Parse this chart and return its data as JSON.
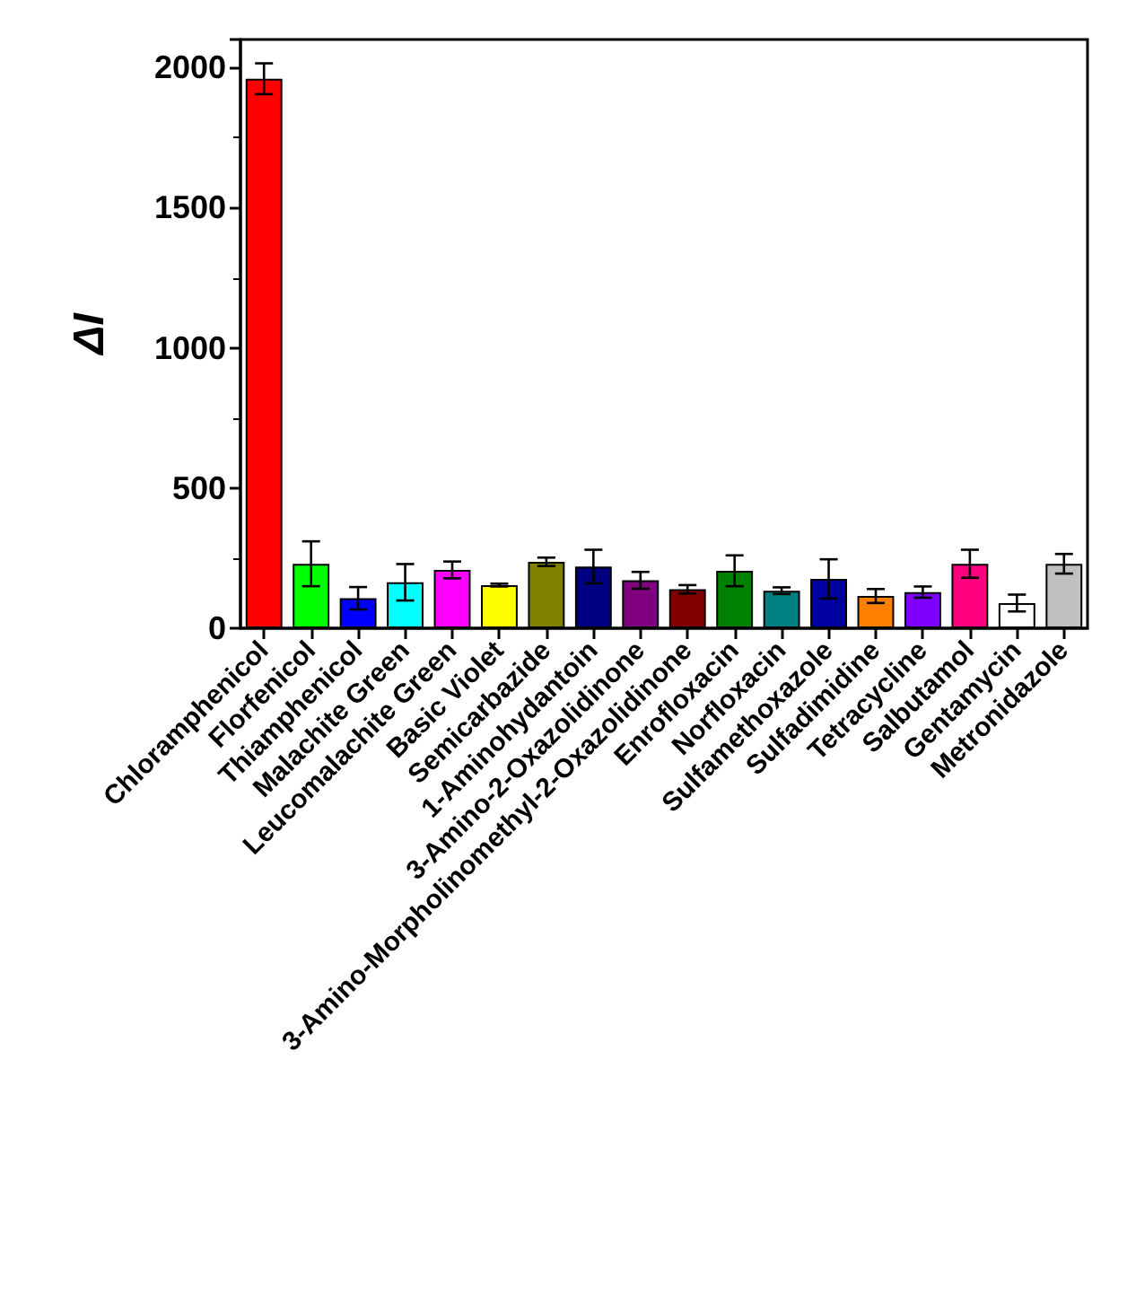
{
  "chart_data": {
    "type": "bar",
    "ylabel": "ΔI",
    "categories": [
      "Chloramphenicol",
      "Florfenicol",
      "Thiamphenicol",
      "Malachite Green",
      "Leucomalachite Green",
      "Basic Violet",
      "Semicarbazide",
      "1-Aminohydantoin",
      "3-Amino-2-Oxazolidinone",
      "3-Amino-Morpholinomethyl-2-Oxazolidinone",
      "Enrofloxacin",
      "Norfloxacin",
      "Sulfamethoxazole",
      "Sulfadimidine",
      "Tetracycline",
      "Salbutamol",
      "Gentamycin",
      "Metronidazole"
    ],
    "values": [
      1960,
      230,
      107,
      164,
      208,
      154,
      237,
      220,
      171,
      139,
      205,
      134,
      176,
      115,
      129,
      230,
      90,
      230
    ],
    "errors": [
      55,
      80,
      40,
      65,
      30,
      5,
      15,
      60,
      30,
      15,
      55,
      12,
      70,
      25,
      20,
      50,
      30,
      35
    ],
    "colors": [
      "#ff0000",
      "#00ff00",
      "#0000ff",
      "#00ffff",
      "#ff00ff",
      "#ffff00",
      "#808000",
      "#000080",
      "#800080",
      "#800000",
      "#008000",
      "#008080",
      "#0000a0",
      "#ff8000",
      "#8000ff",
      "#ff0080",
      "#ffffff",
      "#c0c0c0"
    ],
    "ylim": [
      0,
      2100
    ],
    "yticks": [
      0,
      500,
      1000,
      1500,
      2000
    ],
    "grid": false
  }
}
